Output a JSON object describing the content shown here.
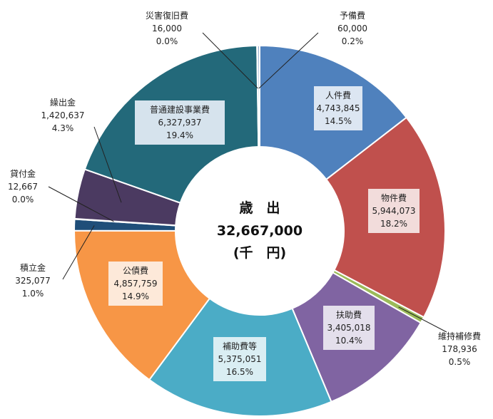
{
  "chart_data": {
    "type": "donut",
    "center": {
      "line1": "歳　出",
      "line2": "32,667,000",
      "line3": "(千　円)"
    },
    "slices": [
      {
        "name": "人件費",
        "value": "4,743,845",
        "percent": "14.5%",
        "v": 4743845,
        "color": "#4f81bd"
      },
      {
        "name": "物件費",
        "value": "5,944,073",
        "percent": "18.2%",
        "v": 5944073,
        "color": "#c0504d"
      },
      {
        "name": "維持補修費",
        "value": "178,936",
        "percent": "0.5%",
        "v": 178936,
        "color": "#9bbb59"
      },
      {
        "name": "扶助費",
        "value": "3,405,018",
        "percent": "10.4%",
        "v": 3405018,
        "color": "#8064a2"
      },
      {
        "name": "補助費等",
        "value": "5,375,051",
        "percent": "16.5%",
        "v": 5375051,
        "color": "#4bacc6"
      },
      {
        "name": "公債費",
        "value": "4,857,759",
        "percent": "14.9%",
        "v": 4857759,
        "color": "#f79646"
      },
      {
        "name": "積立金",
        "value": "325,077",
        "percent": "1.0%",
        "v": 325077,
        "color": "#1f4e79"
      },
      {
        "name": "貸付金",
        "value": "12,667",
        "percent": "0.0%",
        "v": 12667,
        "color": "#7a3e3e"
      },
      {
        "name": "繰出金",
        "value": "1,420,637",
        "percent": "4.3%",
        "v": 1420637,
        "color": "#4b3a61"
      },
      {
        "name": "普通建設事業費",
        "value": "6,327,937",
        "percent": "19.4%",
        "v": 6327937,
        "color": "#23697a"
      },
      {
        "name": "災害復旧費",
        "value": "16,000",
        "percent": "0.0%",
        "v": 16000,
        "color": "#c2562f"
      },
      {
        "name": "予備費",
        "value": "60,000",
        "percent": "0.2%",
        "v": 60000,
        "color": "#8aa4c8"
      }
    ]
  }
}
